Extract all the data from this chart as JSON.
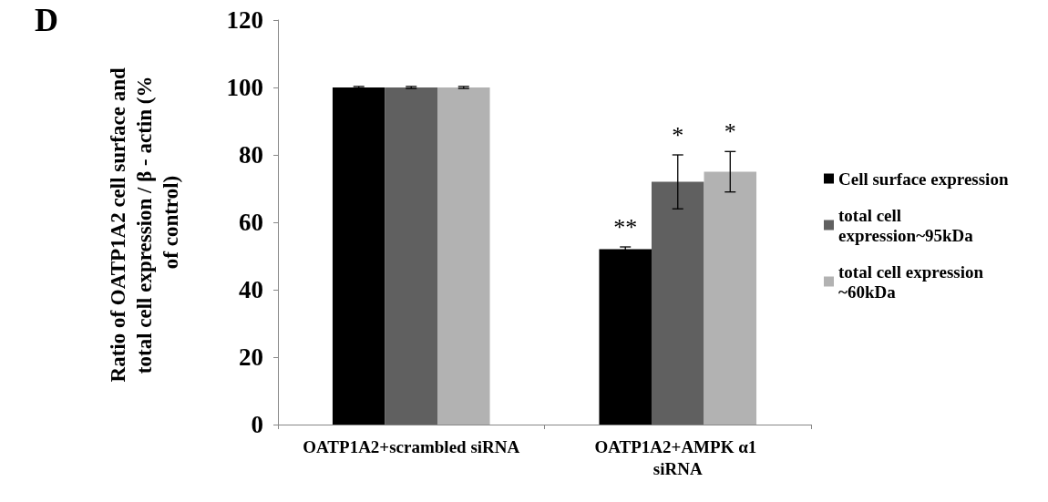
{
  "chart_data": {
    "type": "bar",
    "ylabel": "Ratio of OATP1A2 cell surface and total cell expression / β - actin (% of control)",
    "categories": [
      "OATP1A2+scrambled siRNA",
      "OATP1A2+AMPK α1 siRNA"
    ],
    "series": [
      {
        "name": "Cell surface expression",
        "color": "#000000",
        "values": [
          100,
          52
        ],
        "errors": [
          0.3,
          0.7
        ]
      },
      {
        "name": "total cell expression~95kDa",
        "color": "#606060",
        "values": [
          100,
          72
        ],
        "errors": [
          0.3,
          8
        ]
      },
      {
        "name": "total cell expression ~60kDa",
        "color": "#b2b2b2",
        "values": [
          100,
          75
        ],
        "errors": [
          0.3,
          6
        ]
      }
    ],
    "ylim": [
      0,
      120
    ],
    "yticks": [
      0,
      20,
      40,
      60,
      80,
      100,
      120
    ],
    "grid": false,
    "legend": "right",
    "annotations": [
      "D",
      "**",
      "*",
      "*"
    ]
  }
}
